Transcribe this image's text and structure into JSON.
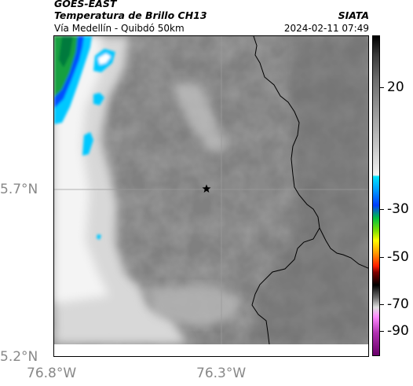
{
  "header": {
    "satellite": "GOES-EAST",
    "product": "Temperatura de Brillo CH13",
    "region": "Vía Medellín - Quibdó 50km",
    "org": "SIATA",
    "datetime": "2024-02-11 07:49"
  },
  "axes": {
    "lat_labels": [
      "5.7°N",
      "5.2°N"
    ],
    "lon_labels": [
      "76.8°W",
      "76.3°W"
    ]
  },
  "colorbar": {
    "labels": [
      "20",
      "-30",
      "-50",
      "-70",
      "-90"
    ],
    "label_values": [
      20,
      -30,
      -50,
      -70,
      -90
    ]
  },
  "map": {
    "marker": "star-icon",
    "colors": {
      "cold_cloud": "#00ccff",
      "deep_cold": "#007a3d",
      "border": "#000000"
    }
  }
}
